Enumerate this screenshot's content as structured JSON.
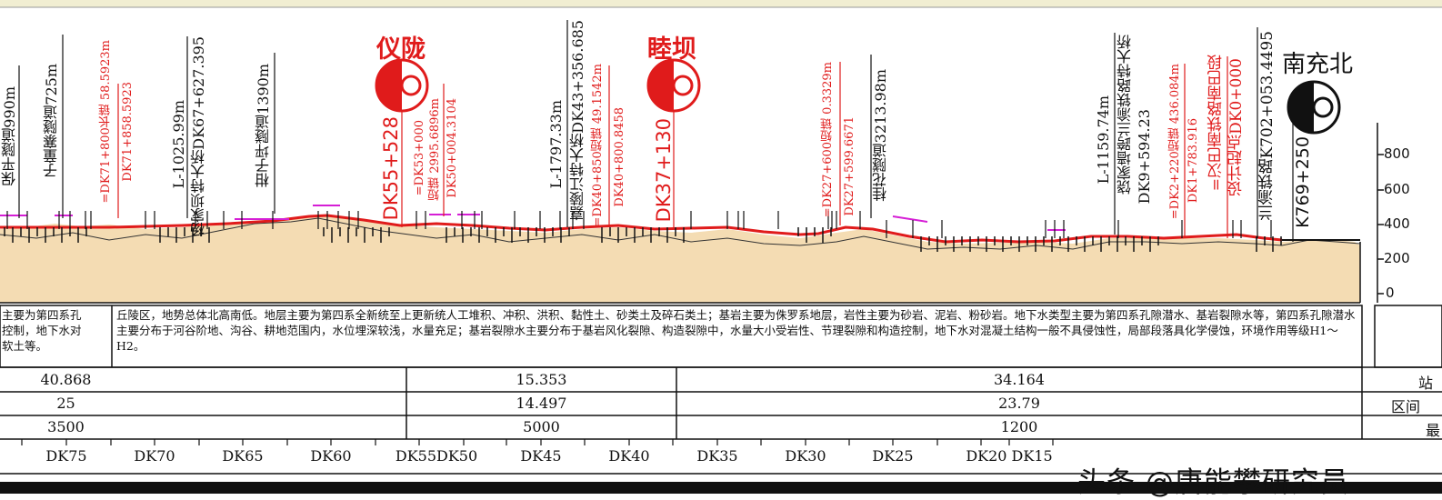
{
  "stations": [
    {
      "id": "yilong",
      "name": "仪陇",
      "chainage": "DK55+528"
    },
    {
      "id": "mudba",
      "name": "睦坝",
      "chainage": "DK37+130"
    },
    {
      "id": "nanchongbei",
      "name": "南充北",
      "chainage": "K769+250"
    }
  ],
  "structure_labels": {
    "baoping": "保平隧道990m",
    "zitongzhai": "子童寨隧道725m",
    "chainbreak1a": "=DK71+800长链 58.5923m",
    "chainbreak1b": "DK71+858.5923",
    "yangjiaba_len": "L-1025.99m",
    "yangjiaba": "杨家坝特大桥DK67+627.395",
    "ganzi": "柑子坪隧道1390m",
    "chainbreak2a": "=DK53+000",
    "chainbreak2b": "短链 2995.6896m",
    "chainbreak2c": "DK50+004.3104",
    "jialing_len": "L-1797.33m",
    "jialing": "嘉陵江特大桥DK43+356.685",
    "chainbreak3a": "=DK40+850短链 49.1542m",
    "chainbreak3b": "DK40+800.8458",
    "chainbreak4a": "=DK27+600短链 0.3329m",
    "chainbreak4b": "DK27+599.6671",
    "guihua": "桂花隧道3213.98m",
    "raojia_len": "L-1159.74m",
    "raojia": "饶家墙跨兰渝铁路特大桥",
    "raojia_ch": "DK9+594.23",
    "chainbreak5a": "=DK2+220短链 436.084m",
    "chainbreak5b": "DK1+783.916",
    "hanba1": "=汉巴南铁路南巴段",
    "hanba2": "设计起点DK0+000",
    "lanyu": "兰渝铁路K702+053.4495"
  },
  "y_axis": {
    "ticks": [
      "800",
      "600",
      "400",
      "200",
      "0"
    ]
  },
  "geology": {
    "left_text": "主要为第四系孔隙潜水、基岩裂隙水等，地下水对控制，地下水对软土等。",
    "left_lines": [
      "主要为第四系孔",
      "控制，地下水对",
      "软土等。"
    ],
    "main_text": "丘陵区，地势总体北高南低。地层主要为第四系全新统至上更新统人工堆积、冲积、洪积、黏性土、砂类土及碎石类土；基岩主要为侏罗系地层，岩性主要为砂岩、泥岩、粉砂岩。地下水类型主要为第四系孔隙潜水、基岩裂隙水等，第四系孔隙潜水主要分布于河谷阶地、沟谷、耕地范围内，水位埋深较浅，水量充足；基岩裂隙水主要分布于基岩风化裂隙、构造裂隙中，水量大小受岩性、节理裂隙和构造控制，地下水对混凝土结构一般不具侵蚀性，局部段落具化学侵蚀，环境作用等级H1～H2。"
  },
  "table": {
    "row1": [
      "40.868",
      "15.353",
      "34.164"
    ],
    "row2": [
      "25",
      "14.497",
      "23.79"
    ],
    "row3": [
      "3500",
      "5000",
      "1200"
    ],
    "right_labels": [
      "站",
      "区间",
      "最"
    ]
  },
  "mileposts": [
    "DK75",
    "DK70",
    "DK65",
    "DK60",
    "DK55DK50",
    "DK45",
    "DK40",
    "DK35",
    "DK30",
    "DK25",
    "DK20 DK15"
  ],
  "watermark": "头条 @唐能攀研究员"
}
